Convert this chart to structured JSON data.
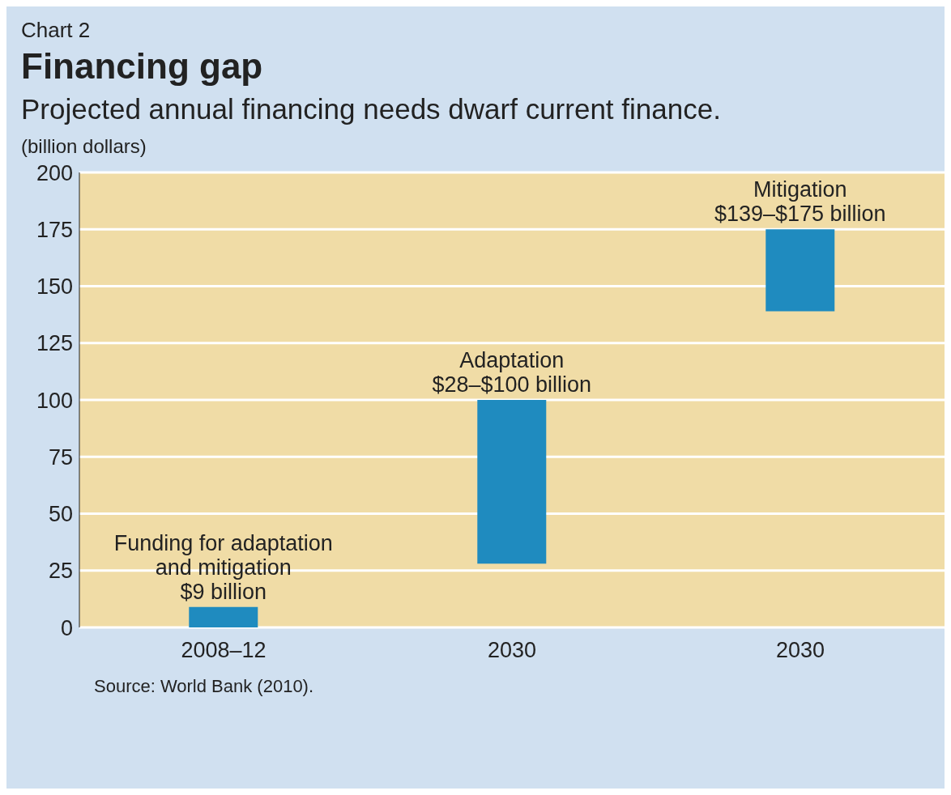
{
  "chart_data": {
    "type": "bar",
    "title": "Financing gap",
    "subtitle": "Projected annual financing needs dwarf current finance.",
    "ylabel": "(billion dollars)",
    "annotations": [
      "Chart 2",
      "Source: World Bank (2010)."
    ],
    "categories": [
      "2008–12",
      "2030",
      "2030"
    ],
    "base": [
      0,
      28,
      139
    ],
    "values": [
      9,
      72,
      36
    ],
    "value_labels": [
      "Funding for adaptation\nand mitigation\n$9 billion",
      "Adaptation\n$28–$100 billion",
      "Mitigation\n$139–$175 billion"
    ],
    "color": "#1f8bbf",
    "ylim": [
      0,
      200
    ],
    "yticks": [
      0,
      25,
      50,
      75,
      100,
      125,
      150,
      175,
      200
    ],
    "grid": "y"
  }
}
